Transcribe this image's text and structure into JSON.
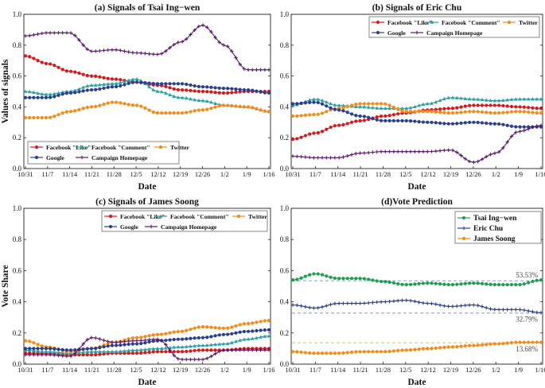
{
  "chart_data": [
    {
      "type": "line",
      "title": "(a) Signals of Tsai Ing−wen",
      "xlabel": "Date",
      "ylabel": "Values of signals",
      "ylim": [
        0,
        1
      ],
      "yticks": [
        "0.0",
        "0.2",
        "0.4",
        "0.6",
        "0.8",
        "1.0"
      ],
      "xticks": [
        "10/31",
        "11/7",
        "11/14",
        "11/21",
        "11/28",
        "12/5",
        "12/12",
        "12/19",
        "12/26",
        "1/2",
        "1/9",
        "1/16"
      ],
      "legend": "bottom-left",
      "series": [
        {
          "name": "Facebook \"Like\"",
          "color": "#d7191c",
          "marker": "circle",
          "values": [
            0.73,
            0.68,
            0.63,
            0.6,
            0.58,
            0.56,
            0.54,
            0.51,
            0.5,
            0.49,
            0.5,
            0.5
          ]
        },
        {
          "name": "Facebook \"Comment\"",
          "color": "#2ca0a0",
          "marker": "triangle",
          "values": [
            0.5,
            0.48,
            0.5,
            0.54,
            0.55,
            0.58,
            0.5,
            0.46,
            0.44,
            0.41,
            0.4,
            0.37
          ]
        },
        {
          "name": "Twitter",
          "color": "#f28c1a",
          "marker": "circle",
          "values": [
            0.33,
            0.33,
            0.37,
            0.4,
            0.43,
            0.41,
            0.36,
            0.36,
            0.38,
            0.41,
            0.4,
            0.37
          ]
        },
        {
          "name": "Google",
          "color": "#2b3f8f",
          "marker": "circle",
          "values": [
            0.46,
            0.46,
            0.49,
            0.51,
            0.53,
            0.56,
            0.55,
            0.55,
            0.53,
            0.52,
            0.51,
            0.49
          ]
        },
        {
          "name": "Campaign Homepage",
          "color": "#5c1a6b",
          "marker": "plus",
          "values": [
            0.86,
            0.88,
            0.88,
            0.76,
            0.77,
            0.75,
            0.74,
            0.82,
            0.93,
            0.8,
            0.64,
            0.64
          ]
        }
      ]
    },
    {
      "type": "line",
      "title": "(b) Signals of Eric Chu",
      "xlabel": "Date",
      "ylabel": "",
      "ylim": [
        0,
        1
      ],
      "yticks": [
        "0.0",
        "0.2",
        "0.4",
        "0.6",
        "0.8",
        "1.0"
      ],
      "xticks": [
        "10/31",
        "11/7",
        "11/14",
        "11/21",
        "11/28",
        "12/5",
        "12/12",
        "12/19",
        "12/26",
        "1/2",
        "1/9",
        "1/16"
      ],
      "legend": "top",
      "series": [
        {
          "name": "Facebook \"Like\"",
          "color": "#d7191c",
          "marker": "circle",
          "values": [
            0.19,
            0.23,
            0.28,
            0.31,
            0.34,
            0.36,
            0.38,
            0.39,
            0.41,
            0.41,
            0.4,
            0.39
          ]
        },
        {
          "name": "Facebook \"Comment\"",
          "color": "#2ca0a0",
          "marker": "triangle",
          "values": [
            0.41,
            0.45,
            0.41,
            0.4,
            0.39,
            0.39,
            0.42,
            0.46,
            0.45,
            0.44,
            0.45,
            0.45
          ]
        },
        {
          "name": "Twitter",
          "color": "#f28c1a",
          "marker": "circle",
          "values": [
            0.34,
            0.35,
            0.39,
            0.42,
            0.42,
            0.37,
            0.37,
            0.36,
            0.37,
            0.36,
            0.37,
            0.36
          ]
        },
        {
          "name": "Google",
          "color": "#2b3f8f",
          "marker": "circle",
          "values": [
            0.42,
            0.43,
            0.38,
            0.34,
            0.31,
            0.31,
            0.3,
            0.29,
            0.3,
            0.29,
            0.27,
            0.27
          ]
        },
        {
          "name": "Campaign Homepage",
          "color": "#5c1a6b",
          "marker": "plus",
          "values": [
            0.08,
            0.07,
            0.07,
            0.1,
            0.11,
            0.11,
            0.11,
            0.12,
            0.04,
            0.1,
            0.24,
            0.28
          ]
        }
      ]
    },
    {
      "type": "line",
      "title": "(c) Signals of James Soong",
      "xlabel": "Date",
      "ylabel": "",
      "ylim": [
        0,
        1
      ],
      "yticks": [
        "0.0",
        "0.2",
        "0.4",
        "0.6",
        "0.8",
        "1.0"
      ],
      "xticks": [
        "10/31",
        "11/7",
        "11/14",
        "11/21",
        "11/28",
        "12/5",
        "12/12",
        "12/19",
        "12/26",
        "1/2",
        "1/9",
        "1/16"
      ],
      "legend": "top",
      "series": [
        {
          "name": "Facebook \"Like\"",
          "color": "#d7191c",
          "marker": "circle",
          "values": [
            0.07,
            0.07,
            0.06,
            0.06,
            0.07,
            0.07,
            0.08,
            0.08,
            0.09,
            0.09,
            0.1,
            0.1
          ]
        },
        {
          "name": "Facebook \"Comment\"",
          "color": "#2ca0a0",
          "marker": "triangle",
          "values": [
            0.09,
            0.08,
            0.07,
            0.08,
            0.08,
            0.09,
            0.1,
            0.11,
            0.12,
            0.13,
            0.16,
            0.18
          ]
        },
        {
          "name": "Twitter",
          "color": "#f28c1a",
          "marker": "circle",
          "values": [
            0.15,
            0.11,
            0.08,
            0.1,
            0.14,
            0.17,
            0.19,
            0.21,
            0.24,
            0.23,
            0.26,
            0.28
          ]
        },
        {
          "name": "Google",
          "color": "#2b3f8f",
          "marker": "circle",
          "values": [
            0.1,
            0.1,
            0.09,
            0.1,
            0.12,
            0.13,
            0.15,
            0.16,
            0.17,
            0.19,
            0.21,
            0.22
          ]
        },
        {
          "name": "Campaign Homepage",
          "color": "#5c1a6b",
          "marker": "plus",
          "values": [
            0.06,
            0.06,
            0.05,
            0.17,
            0.14,
            0.15,
            0.16,
            0.03,
            0.03,
            0.09,
            0.09,
            0.09
          ]
        }
      ]
    },
    {
      "type": "line",
      "title": "(d)Vote Prediction",
      "xlabel": "Date",
      "ylabel": "Vote Share",
      "ylim": [
        0,
        1
      ],
      "yticks": [
        "0.0",
        "0.2",
        "0.4",
        "0.6",
        "0.8",
        "1.0"
      ],
      "xticks": [
        "10/31",
        "11/7",
        "11/14",
        "11/21",
        "11/28",
        "12/5",
        "12/12",
        "12/19",
        "12/26",
        "1/2",
        "1/9",
        "1/16"
      ],
      "legend": "top-right",
      "series": [
        {
          "name": "Tsai Ing−wen",
          "color": "#1f9e4f",
          "marker": "circle",
          "values": [
            0.54,
            0.58,
            0.55,
            0.55,
            0.53,
            0.51,
            0.52,
            0.51,
            0.52,
            0.51,
            0.51,
            0.54
          ]
        },
        {
          "name": "Eric Chu",
          "color": "#2b3f8f",
          "marker": "plus",
          "values": [
            0.38,
            0.36,
            0.39,
            0.39,
            0.4,
            0.41,
            0.39,
            0.37,
            0.38,
            0.35,
            0.35,
            0.33
          ]
        },
        {
          "name": "James Soong",
          "color": "#f28c1a",
          "marker": "circle",
          "values": [
            0.08,
            0.07,
            0.07,
            0.08,
            0.08,
            0.09,
            0.1,
            0.11,
            0.12,
            0.13,
            0.14,
            0.14
          ]
        }
      ],
      "reference_lines": [
        {
          "label": "53.53%",
          "value": 0.5353,
          "color": "#6aa8d8"
        },
        {
          "label": "32.79%",
          "value": 0.3279,
          "color": "#6aa8d8"
        },
        {
          "label": "13.68%",
          "value": 0.1368,
          "color": "#e0c050"
        }
      ]
    }
  ]
}
